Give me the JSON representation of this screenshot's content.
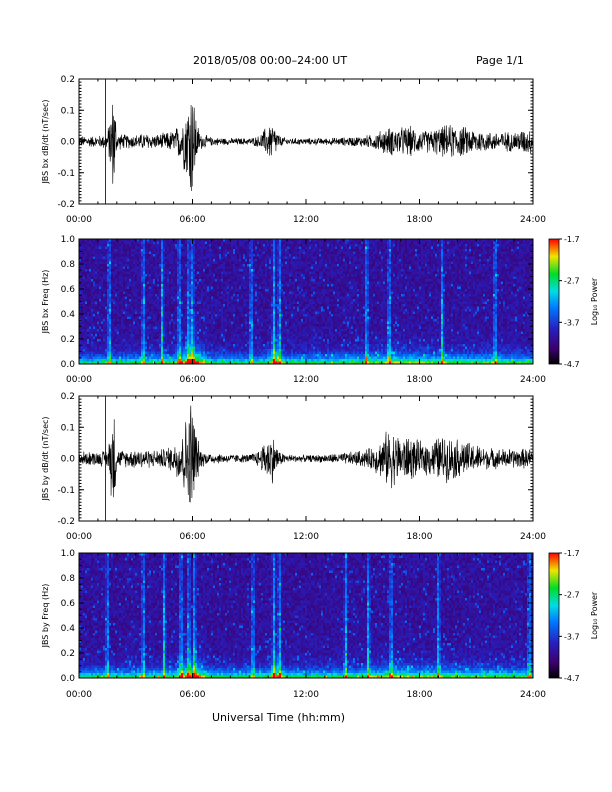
{
  "header": {
    "title": "2018/05/08  00:00–24:00 UT",
    "page": "Page 1/1"
  },
  "footer": {
    "xlabel": "Universal Time (hh:mm)"
  },
  "chart_data": [
    {
      "type": "line",
      "ylabel": "JBS bx dB/dt (nT/sec)",
      "xlim_hours": [
        0,
        24
      ],
      "ylim": [
        -0.2,
        0.2
      ],
      "xticks": [
        "00:00",
        "06:00",
        "12:00",
        "18:00",
        "24:00"
      ],
      "yticks": [
        "-0.2",
        "-0.1",
        "0.0",
        "0.1",
        "0.2"
      ],
      "series": [
        {
          "color": "#000000",
          "x_hours": [
            0,
            0.5,
            1,
            1.5,
            1.85,
            2,
            2.5,
            3,
            3.5,
            4,
            4.5,
            5,
            5.4,
            5.7,
            5.9,
            6.0,
            6.1,
            6.2,
            6.4,
            6.8,
            7,
            8,
            9,
            9.5,
            10,
            10.2,
            10.4,
            10.6,
            11,
            12,
            13,
            14,
            15,
            15.5,
            16,
            16.3,
            16.6,
            17,
            17.5,
            18,
            18.5,
            19,
            19.5,
            20,
            20.5,
            21,
            21.5,
            22,
            22.5,
            23,
            23.5,
            24
          ],
          "amplitude": [
            0.02,
            0.02,
            0.02,
            0.03,
            0.2,
            0.03,
            0.025,
            0.025,
            0.03,
            0.025,
            0.03,
            0.04,
            0.07,
            0.13,
            0.22,
            0.2,
            0.16,
            0.08,
            0.03,
            0.02,
            0.015,
            0.012,
            0.012,
            0.02,
            0.06,
            0.07,
            0.05,
            0.02,
            0.012,
            0.012,
            0.012,
            0.015,
            0.02,
            0.025,
            0.04,
            0.05,
            0.05,
            0.05,
            0.055,
            0.04,
            0.04,
            0.05,
            0.06,
            0.06,
            0.05,
            0.045,
            0.035,
            0.035,
            0.035,
            0.035,
            0.045,
            0.045
          ]
        }
      ]
    },
    {
      "type": "heatmap",
      "ylabel": "JBS bx Freq (Hz)",
      "ylim": [
        0.0,
        1.0
      ],
      "yticks": [
        "0.0",
        "0.2",
        "0.4",
        "0.6",
        "0.8",
        "1.0"
      ],
      "xticks": [
        "00:00",
        "06:00",
        "12:00",
        "18:00",
        "24:00"
      ],
      "colorbar": {
        "label": "Log₁₀ Power",
        "ticks": [
          "-1.7",
          "-2.7",
          "-3.7",
          "-4.7"
        ],
        "range": [
          -4.7,
          -1.7
        ]
      },
      "bright_streaks_hours": [
        1.6,
        3.4,
        4.4,
        5.3,
        5.8,
        6.0,
        9.1,
        10.3,
        10.6,
        15.2,
        16.4,
        19.2,
        22.0
      ]
    },
    {
      "type": "line",
      "ylabel": "JBS by dB/dt (nT/sec)",
      "xlim_hours": [
        0,
        24
      ],
      "ylim": [
        -0.2,
        0.2
      ],
      "xticks": [
        "00:00",
        "06:00",
        "12:00",
        "18:00",
        "24:00"
      ],
      "yticks": [
        "-0.2",
        "-0.1",
        "0.0",
        "0.1",
        "0.2"
      ],
      "series": [
        {
          "color": "#000000",
          "x_hours": [
            0,
            0.5,
            1,
            1.5,
            1.85,
            2,
            2.5,
            3,
            3.5,
            4,
            4.5,
            5,
            5.4,
            5.7,
            5.9,
            6.0,
            6.1,
            6.2,
            6.4,
            6.8,
            7,
            8,
            9,
            9.5,
            10,
            10.2,
            10.4,
            10.6,
            11,
            12,
            13,
            14,
            15,
            15.5,
            16,
            16.3,
            16.6,
            17,
            17.5,
            18,
            18.5,
            19,
            19.5,
            20,
            20.5,
            21,
            21.5,
            22,
            22.5,
            23,
            23.5,
            24
          ],
          "amplitude": [
            0.025,
            0.025,
            0.025,
            0.03,
            0.2,
            0.03,
            0.03,
            0.035,
            0.035,
            0.03,
            0.035,
            0.05,
            0.1,
            0.15,
            0.22,
            0.2,
            0.17,
            0.1,
            0.035,
            0.02,
            0.02,
            0.015,
            0.015,
            0.03,
            0.08,
            0.09,
            0.06,
            0.025,
            0.015,
            0.012,
            0.015,
            0.02,
            0.03,
            0.04,
            0.07,
            0.1,
            0.1,
            0.08,
            0.08,
            0.06,
            0.06,
            0.08,
            0.08,
            0.07,
            0.06,
            0.05,
            0.04,
            0.035,
            0.035,
            0.035,
            0.035,
            0.035
          ]
        }
      ]
    },
    {
      "type": "heatmap",
      "ylabel": "JBS by Freq (Hz)",
      "ylim": [
        0.0,
        1.0
      ],
      "yticks": [
        "0.0",
        "0.2",
        "0.4",
        "0.6",
        "0.8",
        "1.0"
      ],
      "xticks": [
        "00:00",
        "06:00",
        "12:00",
        "18:00",
        "24:00"
      ],
      "colorbar": {
        "label": "Log₁₀ Power",
        "ticks": [
          "-1.7",
          "-2.7",
          "-3.7",
          "-4.7"
        ],
        "range": [
          -4.7,
          -1.7
        ]
      },
      "bright_streaks_hours": [
        1.5,
        3.4,
        4.5,
        5.4,
        5.8,
        6.1,
        9.2,
        10.3,
        10.6,
        14.1,
        15.3,
        16.5,
        19.0,
        23.8
      ]
    }
  ]
}
